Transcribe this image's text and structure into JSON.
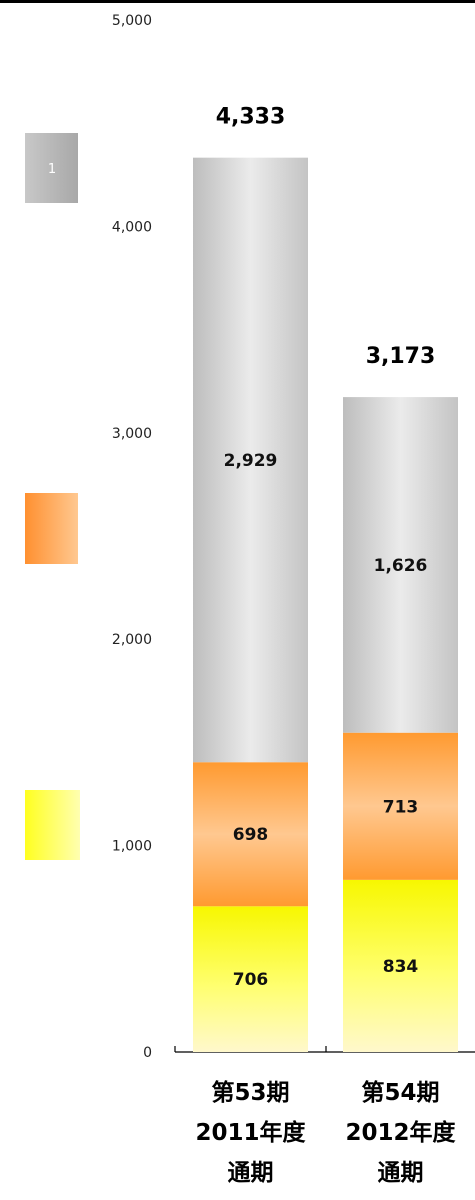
{
  "chart_data": {
    "type": "bar",
    "stacked": true,
    "categories": [
      [
        "第53期",
        "2011年度",
        "通期"
      ],
      [
        "第54期",
        "2012年度",
        "通期"
      ]
    ],
    "series": [
      {
        "values": [
          706,
          834
        ],
        "color_top": "#f7f700",
        "color_mid": "#ffff80",
        "color_bottom": "#fffff0"
      },
      {
        "values": [
          698,
          713
        ],
        "color_top": "#ff8c1a",
        "color_mid": "#ffc98a",
        "color_bottom": "#ffa040"
      },
      {
        "values": [
          2929,
          1626
        ],
        "color_top": "#c9c9c9",
        "color_mid": "#e6e6e6",
        "color_bottom": "#bdbdbd"
      }
    ],
    "totals": [
      "4,333",
      "3,173"
    ],
    "segment_labels": [
      [
        "706",
        "834"
      ],
      [
        "698",
        "713"
      ],
      [
        "2,929",
        "1,626"
      ]
    ],
    "y_ticks": [
      "0",
      "1,000",
      "2,000",
      "3,000",
      "4,000",
      "5,000"
    ],
    "ylim": [
      0,
      5000
    ],
    "legend_text": [
      "",
      "",
      "1"
    ],
    "grid": false
  }
}
